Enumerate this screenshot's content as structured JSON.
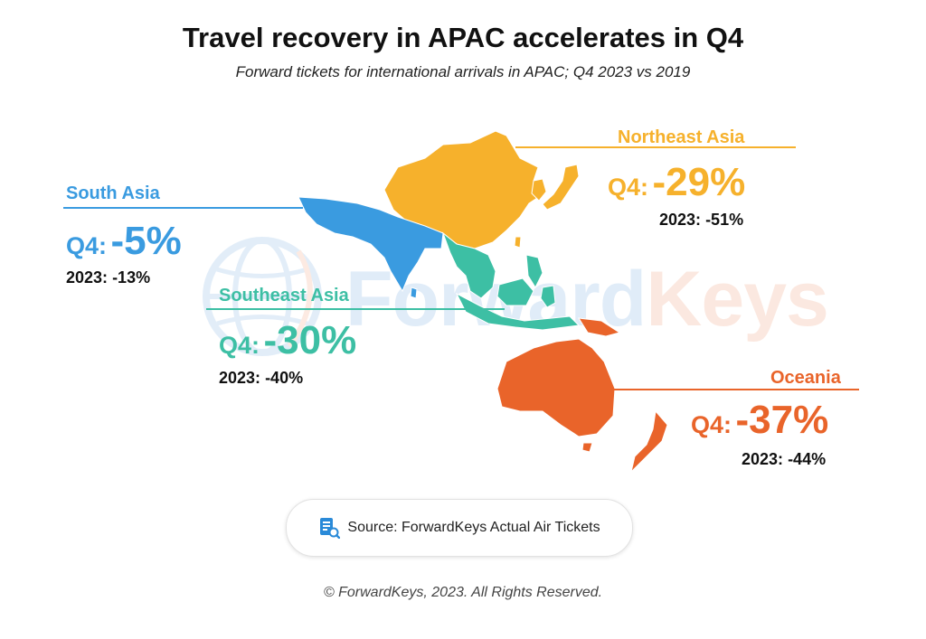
{
  "header": {
    "title": "Travel recovery in APAC accelerates in Q4",
    "subtitle": "Forward tickets for international arrivals in APAC; Q4 2023 vs 2019"
  },
  "watermark": {
    "forward": "Forward",
    "keys": "Keys"
  },
  "regions": {
    "south_asia": {
      "name": "South Asia",
      "q4_label": "Q4:",
      "q4_value": "-5%",
      "y_label": "2023:",
      "y_value": "-13%",
      "color": "#3a9be0"
    },
    "northeast_asia": {
      "name": "Northeast Asia",
      "q4_label": "Q4:",
      "q4_value": "-29%",
      "y_label": "2023:",
      "y_value": "-51%",
      "color": "#f6b12c"
    },
    "southeast_asia": {
      "name": "Southeast Asia",
      "q4_label": "Q4:",
      "q4_value": "-30%",
      "y_label": "2023:",
      "y_value": "-40%",
      "color": "#3dbfa4"
    },
    "oceania": {
      "name": "Oceania",
      "q4_label": "Q4:",
      "q4_value": "-37%",
      "y_label": "2023:",
      "y_value": "-44%",
      "color": "#e9642a"
    }
  },
  "source": {
    "icon": "document-search-icon",
    "text": "Source: ForwardKeys Actual Air Tickets"
  },
  "footer": {
    "copyright": "© ForwardKeys, 2023. All Rights Reserved."
  }
}
